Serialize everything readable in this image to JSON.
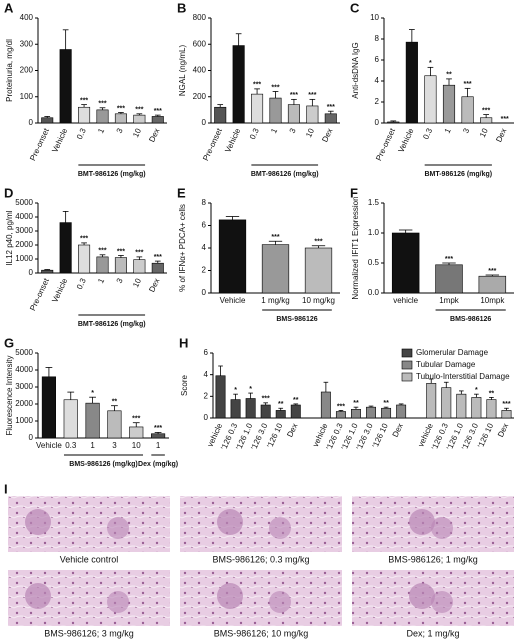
{
  "chart_data": [
    {
      "type": "bar",
      "panel": "A",
      "ylabel": "Proteinuria, mg/dl",
      "group_label": "BMT-986126 (mg/kg)",
      "categories": [
        "Pre-onset",
        "Vehicle",
        "0.3",
        "1",
        "3",
        "10",
        "Dex"
      ],
      "values": [
        20,
        280,
        60,
        50,
        35,
        30,
        25
      ],
      "errors": [
        5,
        75,
        10,
        8,
        5,
        5,
        5
      ],
      "annotations": [
        null,
        null,
        "***",
        "***",
        "***",
        "***",
        "***"
      ],
      "colors": [
        "#555555",
        "#111111",
        "#dddddd",
        "#999999",
        "#bbbbbb",
        "#cccccc",
        "#666666"
      ],
      "ylim": [
        0,
        400
      ],
      "yticks": [
        0,
        100,
        200,
        300,
        400
      ]
    },
    {
      "type": "bar",
      "panel": "B",
      "ylabel": "NGAL (ng/mL)",
      "group_label": "BMT-986126 (mg/kg)",
      "categories": [
        "Pre-onset",
        "Vehicle",
        "0.3",
        "1",
        "3",
        "10",
        "Dex"
      ],
      "values": [
        120,
        590,
        220,
        190,
        140,
        130,
        70
      ],
      "errors": [
        20,
        90,
        40,
        50,
        40,
        50,
        20
      ],
      "annotations": [
        null,
        null,
        "***",
        "***",
        "***",
        "***",
        "***"
      ],
      "colors": [
        "#555555",
        "#111111",
        "#dddddd",
        "#999999",
        "#bbbbbb",
        "#cccccc",
        "#666666"
      ],
      "ylim": [
        0,
        800
      ],
      "yticks": [
        0,
        200,
        400,
        600,
        800
      ]
    },
    {
      "type": "bar",
      "panel": "C",
      "ylabel": "Anti-dsDNA IgG",
      "group_label": "BMT-986126 (mg/kg)",
      "categories": [
        "Pre-onset",
        "Vehicle",
        "0.3",
        "1",
        "3",
        "10",
        "Dex"
      ],
      "values": [
        0.1,
        7.7,
        4.5,
        3.6,
        2.5,
        0.5,
        0
      ],
      "errors": [
        0.1,
        1.2,
        0.8,
        0.6,
        0.8,
        0.3,
        0
      ],
      "annotations": [
        null,
        null,
        "*",
        "**",
        "***",
        "***",
        "***"
      ],
      "colors": [
        "#555555",
        "#111111",
        "#dddddd",
        "#999999",
        "#bbbbbb",
        "#cccccc",
        "#666666"
      ],
      "ylim": [
        0,
        10
      ],
      "yticks": [
        0,
        2,
        4,
        6,
        8,
        10
      ]
    },
    {
      "type": "bar",
      "panel": "D",
      "ylabel": "IL12 p40, pg/ml",
      "group_label": "BMT-986126 (mg/kg)",
      "categories": [
        "Pre-onset",
        "Vehicle",
        "0.3",
        "1",
        "3",
        "10",
        "Dex"
      ],
      "values": [
        200,
        3600,
        2000,
        1150,
        1100,
        950,
        700
      ],
      "errors": [
        50,
        800,
        150,
        150,
        150,
        200,
        150
      ],
      "annotations": [
        null,
        null,
        "***",
        "***",
        "***",
        "***",
        "***"
      ],
      "colors": [
        "#555555",
        "#111111",
        "#dddddd",
        "#999999",
        "#bbbbbb",
        "#cccccc",
        "#666666"
      ],
      "ylim": [
        0,
        5000
      ],
      "yticks": [
        0,
        1000,
        2000,
        3000,
        4000,
        5000
      ]
    },
    {
      "type": "bar",
      "panel": "E",
      "ylabel": "% of IFNα+ PDCA+ cells",
      "group_label": "BMS-986126",
      "categories": [
        "Vehicle",
        "1 mg/kg",
        "10 mg/kg"
      ],
      "values": [
        6.5,
        4.3,
        4.0
      ],
      "errors": [
        0.3,
        0.3,
        0.2
      ],
      "annotations": [
        null,
        "***",
        "***"
      ],
      "colors": [
        "#111111",
        "#999999",
        "#bbbbbb"
      ],
      "ylim": [
        0,
        8
      ],
      "yticks": [
        0,
        2,
        4,
        6,
        8
      ]
    },
    {
      "type": "bar",
      "panel": "F",
      "ylabel": "Normalized IFIT1 Expression",
      "group_label": "BMS-986126",
      "categories": [
        "vehicle",
        "1mpk",
        "10mpk"
      ],
      "values": [
        1.0,
        0.47,
        0.28
      ],
      "errors": [
        0.05,
        0.03,
        0.02
      ],
      "annotations": [
        null,
        "***",
        "***"
      ],
      "colors": [
        "#111111",
        "#777777",
        "#aaaaaa"
      ],
      "ylim": [
        0,
        1.5
      ],
      "yticks": [
        {
          "value": 0,
          "label": "0.0"
        },
        {
          "value": 0.5,
          "label": "0.5"
        },
        {
          "value": 1,
          "label": "1.0"
        },
        {
          "value": 1.5,
          "label": "1.5"
        }
      ]
    },
    {
      "type": "bar",
      "panel": "G",
      "ylabel": "Fluorescence Intensity",
      "group_label": [
        "BMS-986126 (mg/kg)",
        "Dex (mg/kg)"
      ],
      "categories": [
        "Vehicle",
        "0.3",
        "1",
        "3",
        "10",
        "1"
      ],
      "values": [
        3600,
        2250,
        2050,
        1600,
        650,
        250
      ],
      "errors": [
        550,
        450,
        350,
        300,
        250,
        80
      ],
      "annotations": [
        null,
        null,
        "*",
        "**",
        "***",
        "***"
      ],
      "colors": [
        "#111111",
        "#dddddd",
        "#888888",
        "#bbbbbb",
        "#cccccc",
        "#555555"
      ],
      "ylim": [
        0,
        5000
      ],
      "yticks": [
        0,
        1000,
        2000,
        3000,
        4000,
        5000
      ]
    },
    {
      "type": "grouped",
      "panel": "H",
      "ylabel": "Score",
      "legend": "upper right",
      "categories": [
        "vehicle",
        "'126 0.3",
        "'126 1.0",
        "'126 3.0",
        "'126 10",
        "Dex"
      ],
      "series": [
        {
          "name": "Glomerular Damage",
          "color": "#444444",
          "values": [
            3.9,
            1.7,
            1.8,
            1.2,
            0.7,
            1.2
          ],
          "errors": [
            0.9,
            0.5,
            0.5,
            0.2,
            0.2,
            0.1
          ],
          "annotations": [
            null,
            "*",
            "*",
            "***",
            "**",
            "**"
          ]
        },
        {
          "name": "Tubular Damage",
          "color": "#888888",
          "values": [
            2.4,
            0.6,
            0.8,
            1.0,
            0.9,
            1.2
          ],
          "errors": [
            0.9,
            0.1,
            0.2,
            0.1,
            0.1,
            0.1
          ],
          "annotations": [
            null,
            "***",
            "**",
            null,
            "**",
            null
          ]
        },
        {
          "name": "Tubulo-Interstitial Damage",
          "color": "#bbbbbb",
          "values": [
            3.2,
            2.8,
            2.2,
            1.9,
            1.7,
            0.7
          ],
          "errors": [
            0.4,
            0.5,
            0.3,
            0.3,
            0.2,
            0.2
          ],
          "annotations": [
            null,
            null,
            null,
            "*",
            "**",
            "***"
          ]
        }
      ],
      "ylim": [
        0,
        6
      ],
      "yticks": [
        0,
        2,
        4,
        6
      ]
    }
  ],
  "images": {
    "panel": "I",
    "captions": [
      "Vehicle control",
      "BMS-986126; 0.3 mg/kg",
      "BMS-986126; 1 mg/kg",
      "BMS-986126; 3 mg/kg",
      "BMS-986126; 10 mg/kg",
      "Dex; 1 mg/kg"
    ]
  }
}
